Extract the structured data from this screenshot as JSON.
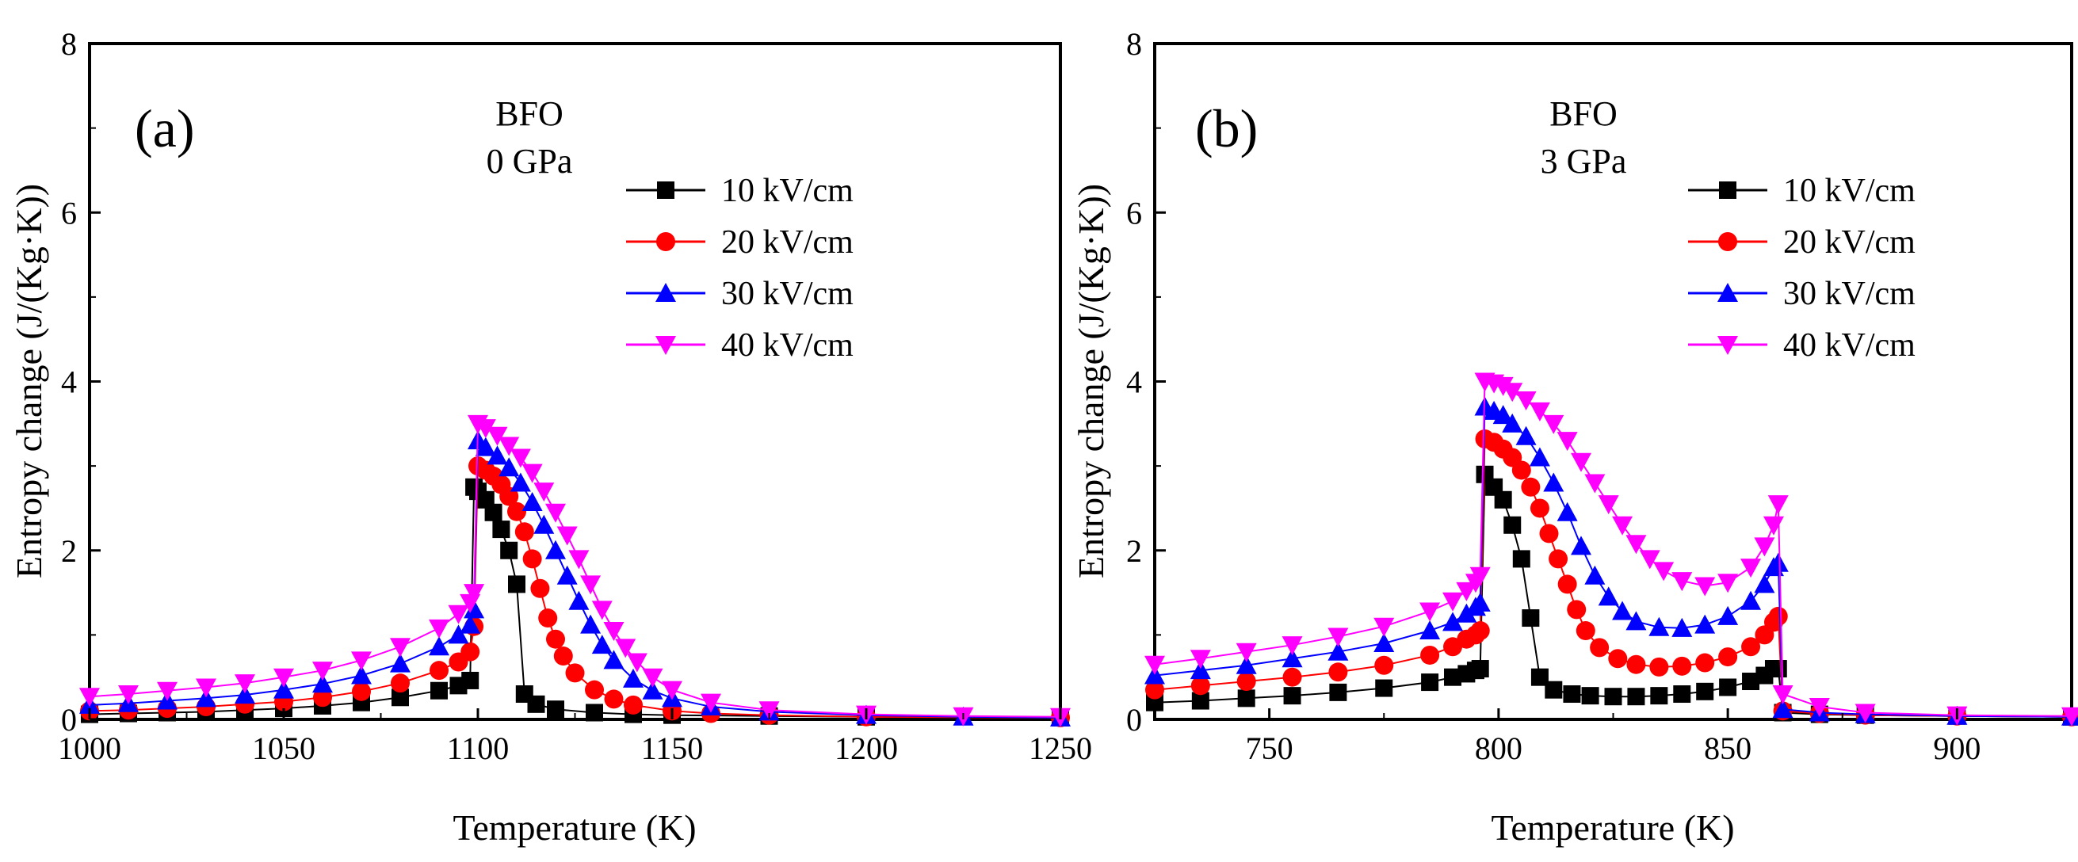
{
  "chart_data": [
    {
      "type": "scatter",
      "panel_label": "(a)",
      "annotation_lines": [
        "BFO",
        "0 GPa"
      ],
      "xlabel": "Temperature (K)",
      "ylabel": "Entropy change (J/(Kg·K))",
      "xlim": [
        1000,
        1250
      ],
      "ylim": [
        0,
        8
      ],
      "xticks": [
        1000,
        1050,
        1100,
        1150,
        1200,
        1250
      ],
      "yticks": [
        0,
        2,
        4,
        6,
        8
      ],
      "legend_position": "upper-right",
      "series": [
        {
          "name": "10 kV/cm",
          "color": "#000000",
          "marker": "square",
          "x": [
            1000,
            1010,
            1020,
            1030,
            1040,
            1050,
            1060,
            1070,
            1080,
            1090,
            1095,
            1098,
            1099,
            1100,
            1102,
            1104,
            1106,
            1108,
            1110,
            1112,
            1115,
            1120,
            1130,
            1140,
            1150,
            1175,
            1200,
            1250
          ],
          "y": [
            0.06,
            0.07,
            0.08,
            0.09,
            0.11,
            0.13,
            0.16,
            0.2,
            0.26,
            0.34,
            0.4,
            0.46,
            2.75,
            2.7,
            2.6,
            2.45,
            2.25,
            2.0,
            1.6,
            0.3,
            0.18,
            0.12,
            0.08,
            0.06,
            0.05,
            0.04,
            0.03,
            0.02
          ]
        },
        {
          "name": "20 kV/cm",
          "color": "#ff0000",
          "marker": "circle",
          "x": [
            1000,
            1010,
            1020,
            1030,
            1040,
            1050,
            1060,
            1070,
            1080,
            1090,
            1095,
            1098,
            1099,
            1100,
            1102,
            1104,
            1106,
            1108,
            1110,
            1112,
            1114,
            1116,
            1118,
            1120,
            1122,
            1125,
            1130,
            1135,
            1140,
            1150,
            1160,
            1175,
            1200,
            1250
          ],
          "y": [
            0.1,
            0.11,
            0.13,
            0.15,
            0.18,
            0.21,
            0.26,
            0.33,
            0.43,
            0.58,
            0.68,
            0.8,
            1.1,
            3.0,
            2.95,
            2.88,
            2.78,
            2.64,
            2.46,
            2.22,
            1.9,
            1.55,
            1.2,
            0.95,
            0.75,
            0.55,
            0.35,
            0.24,
            0.17,
            0.1,
            0.07,
            0.05,
            0.03,
            0.02
          ]
        },
        {
          "name": "30 kV/cm",
          "color": "#0000ff",
          "marker": "triangle-up",
          "x": [
            1000,
            1010,
            1020,
            1030,
            1040,
            1050,
            1060,
            1070,
            1080,
            1090,
            1095,
            1098,
            1099,
            1100,
            1102,
            1105,
            1108,
            1111,
            1114,
            1117,
            1120,
            1123,
            1126,
            1129,
            1132,
            1135,
            1140,
            1145,
            1150,
            1160,
            1175,
            1200,
            1225,
            1250
          ],
          "y": [
            0.17,
            0.19,
            0.22,
            0.25,
            0.29,
            0.35,
            0.42,
            0.52,
            0.66,
            0.86,
            1.0,
            1.12,
            1.3,
            3.3,
            3.22,
            3.12,
            2.98,
            2.8,
            2.57,
            2.3,
            2.0,
            1.7,
            1.4,
            1.12,
            0.88,
            0.7,
            0.48,
            0.34,
            0.25,
            0.15,
            0.09,
            0.05,
            0.03,
            0.02
          ]
        },
        {
          "name": "40 kV/cm",
          "color": "#ff00ff",
          "marker": "triangle-down",
          "x": [
            1000,
            1010,
            1020,
            1030,
            1040,
            1050,
            1060,
            1070,
            1080,
            1090,
            1095,
            1098,
            1099,
            1100,
            1102,
            1105,
            1108,
            1111,
            1114,
            1117,
            1120,
            1123,
            1126,
            1129,
            1132,
            1135,
            1138,
            1141,
            1145,
            1150,
            1160,
            1175,
            1200,
            1225,
            1250
          ],
          "y": [
            0.27,
            0.3,
            0.34,
            0.38,
            0.43,
            0.5,
            0.58,
            0.7,
            0.86,
            1.08,
            1.25,
            1.38,
            1.5,
            3.5,
            3.45,
            3.36,
            3.24,
            3.1,
            2.92,
            2.7,
            2.45,
            2.18,
            1.9,
            1.6,
            1.3,
            1.05,
            0.85,
            0.68,
            0.5,
            0.35,
            0.2,
            0.11,
            0.06,
            0.04,
            0.03
          ]
        }
      ]
    },
    {
      "type": "scatter",
      "panel_label": "(b)",
      "annotation_lines": [
        "BFO",
        "3 GPa"
      ],
      "xlabel": "Temperature (K)",
      "ylabel": "Entropy change (J/(Kg·K))",
      "xlim": [
        725,
        925
      ],
      "ylim": [
        0,
        8
      ],
      "xticks": [
        750,
        800,
        850,
        900
      ],
      "yticks": [
        0,
        2,
        4,
        6,
        8
      ],
      "legend_position": "upper-right",
      "series": [
        {
          "name": "10 kV/cm",
          "color": "#000000",
          "marker": "square",
          "x": [
            725,
            735,
            745,
            755,
            765,
            775,
            785,
            790,
            793,
            795,
            796,
            797,
            799,
            801,
            803,
            805,
            807,
            809,
            812,
            816,
            820,
            825,
            830,
            835,
            840,
            845,
            850,
            855,
            858,
            860,
            861,
            862,
            870,
            880,
            900,
            925
          ],
          "y": [
            0.2,
            0.22,
            0.25,
            0.28,
            0.32,
            0.37,
            0.44,
            0.5,
            0.54,
            0.58,
            0.6,
            2.9,
            2.75,
            2.6,
            2.3,
            1.9,
            1.2,
            0.5,
            0.35,
            0.3,
            0.28,
            0.27,
            0.27,
            0.28,
            0.3,
            0.33,
            0.38,
            0.45,
            0.52,
            0.6,
            0.6,
            0.08,
            0.06,
            0.05,
            0.04,
            0.03
          ]
        },
        {
          "name": "20 kV/cm",
          "color": "#ff0000",
          "marker": "circle",
          "x": [
            725,
            735,
            745,
            755,
            765,
            775,
            785,
            790,
            793,
            795,
            796,
            797,
            799,
            801,
            803,
            805,
            807,
            809,
            811,
            813,
            815,
            817,
            819,
            822,
            826,
            830,
            835,
            840,
            845,
            850,
            855,
            858,
            860,
            861,
            862,
            870,
            880,
            900,
            925
          ],
          "y": [
            0.35,
            0.4,
            0.45,
            0.5,
            0.56,
            0.64,
            0.76,
            0.86,
            0.95,
            1.0,
            1.05,
            3.32,
            3.28,
            3.2,
            3.1,
            2.95,
            2.75,
            2.5,
            2.2,
            1.9,
            1.6,
            1.3,
            1.05,
            0.85,
            0.72,
            0.65,
            0.62,
            0.63,
            0.67,
            0.74,
            0.86,
            1.0,
            1.15,
            1.22,
            0.1,
            0.07,
            0.05,
            0.04,
            0.03
          ]
        },
        {
          "name": "30 kV/cm",
          "color": "#0000ff",
          "marker": "triangle-up",
          "x": [
            725,
            735,
            745,
            755,
            765,
            775,
            785,
            790,
            793,
            795,
            796,
            797,
            799,
            801,
            803,
            806,
            809,
            812,
            815,
            818,
            821,
            824,
            827,
            830,
            835,
            840,
            845,
            850,
            855,
            858,
            860,
            861,
            862,
            870,
            880,
            900,
            925
          ],
          "y": [
            0.52,
            0.58,
            0.64,
            0.72,
            0.8,
            0.9,
            1.05,
            1.15,
            1.25,
            1.33,
            1.38,
            3.7,
            3.65,
            3.6,
            3.5,
            3.35,
            3.1,
            2.8,
            2.45,
            2.05,
            1.7,
            1.45,
            1.28,
            1.16,
            1.09,
            1.08,
            1.12,
            1.22,
            1.4,
            1.6,
            1.8,
            1.85,
            0.12,
            0.08,
            0.06,
            0.04,
            0.03
          ]
        },
        {
          "name": "40 kV/cm",
          "color": "#ff00ff",
          "marker": "triangle-down",
          "x": [
            725,
            735,
            745,
            755,
            765,
            775,
            785,
            790,
            793,
            795,
            796,
            797,
            799,
            801,
            803,
            806,
            809,
            812,
            815,
            818,
            821,
            824,
            827,
            830,
            833,
            836,
            840,
            845,
            850,
            855,
            858,
            860,
            861,
            862,
            870,
            880,
            900,
            925
          ],
          "y": [
            0.65,
            0.72,
            0.8,
            0.88,
            0.98,
            1.1,
            1.28,
            1.4,
            1.52,
            1.62,
            1.7,
            4.0,
            3.98,
            3.95,
            3.88,
            3.78,
            3.65,
            3.5,
            3.3,
            3.05,
            2.8,
            2.55,
            2.3,
            2.08,
            1.9,
            1.76,
            1.64,
            1.58,
            1.62,
            1.8,
            2.05,
            2.3,
            2.55,
            0.3,
            0.15,
            0.08,
            0.05,
            0.04
          ]
        }
      ]
    }
  ]
}
